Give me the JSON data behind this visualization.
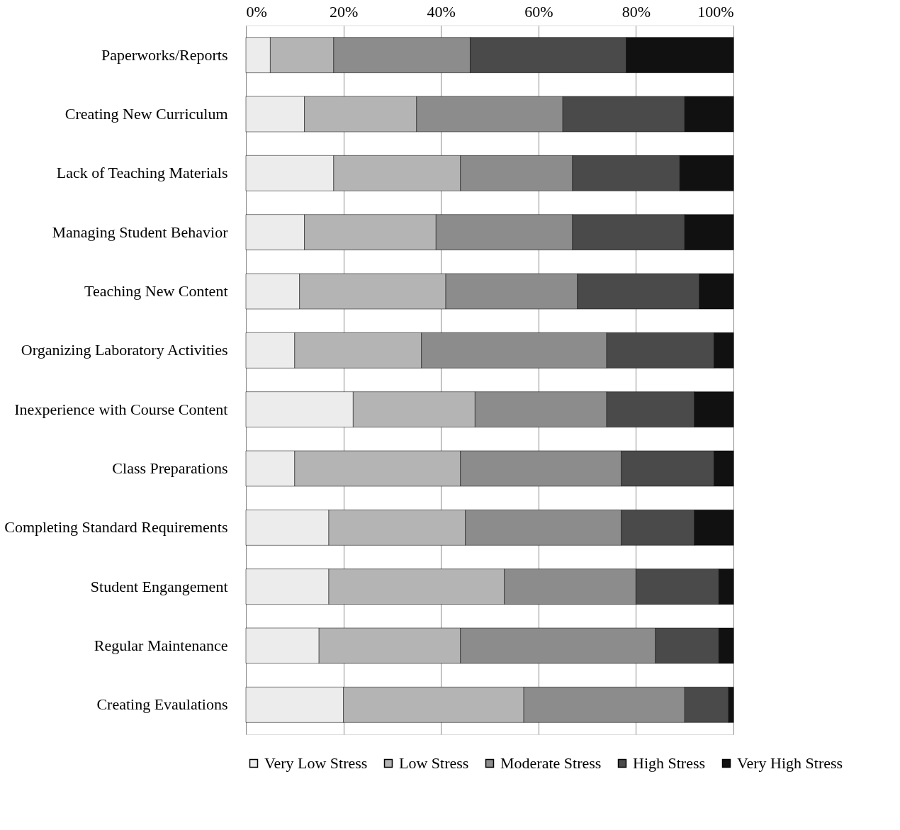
{
  "chart_data": {
    "type": "bar",
    "orientation": "horizontal",
    "stacked": true,
    "categories": [
      "Paperworks/Reports",
      "Creating New Curriculum",
      "Lack of Teaching Materials",
      "Managing Student Behavior",
      "Teaching New Content",
      "Organizing Laboratory Activities",
      "Inexperience with Course Content",
      "Class Preparations",
      "Completing Standard Requirements",
      "Student Engangement",
      "Regular Maintenance",
      "Creating Evaulations"
    ],
    "series": [
      {
        "name": "Very Low Stress",
        "color": "#ececec",
        "values": [
          5,
          12,
          18,
          12,
          11,
          10,
          22,
          10,
          17,
          17,
          15,
          20
        ]
      },
      {
        "name": "Low Stress",
        "color": "#b4b4b4",
        "values": [
          13,
          23,
          26,
          27,
          30,
          26,
          25,
          34,
          28,
          36,
          29,
          37
        ]
      },
      {
        "name": "Moderate Stress",
        "color": "#8c8c8c",
        "values": [
          28,
          30,
          23,
          28,
          27,
          38,
          27,
          33,
          32,
          27,
          40,
          33
        ]
      },
      {
        "name": "High Stress",
        "color": "#4a4a4a",
        "values": [
          32,
          25,
          22,
          23,
          25,
          22,
          18,
          19,
          15,
          17,
          13,
          9
        ]
      },
      {
        "name": "Very High Stress",
        "color": "#111111",
        "values": [
          22,
          10,
          11,
          10,
          7,
          4,
          8,
          4,
          8,
          3,
          3,
          1
        ]
      }
    ],
    "xlim": [
      0,
      100
    ],
    "xticks": [
      {
        "value": 0,
        "label": "0%"
      },
      {
        "value": 20,
        "label": "20%"
      },
      {
        "value": 40,
        "label": "40%"
      },
      {
        "value": 60,
        "label": "60%"
      },
      {
        "value": 80,
        "label": "80%"
      },
      {
        "value": 100,
        "label": "100%"
      }
    ],
    "grid": "x",
    "legend": "bottom"
  }
}
